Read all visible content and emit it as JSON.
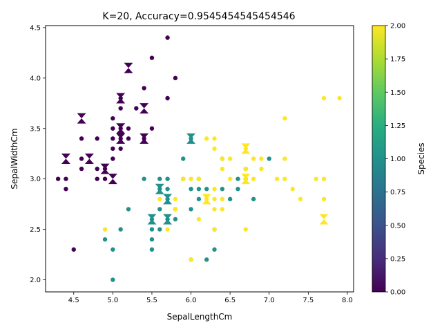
{
  "chart_data": {
    "type": "scatter",
    "title": "K=20, Accuracy=0.9545454545454546",
    "xlabel": "SepalLengthCm",
    "ylabel": "SepalWidthCm",
    "xlim": [
      4.14,
      8.08
    ],
    "ylim": [
      1.88,
      4.52
    ],
    "xticks": [
      "4.5",
      "5.0",
      "5.5",
      "6.0",
      "6.5",
      "7.0",
      "7.5",
      "8.0"
    ],
    "yticks": [
      "2.0",
      "2.5",
      "3.0",
      "3.5",
      "4.0",
      "4.5"
    ],
    "grid": false,
    "colorbar": {
      "label": "Species",
      "range": [
        0,
        2
      ],
      "ticks": [
        "0.00",
        "0.25",
        "0.50",
        "0.75",
        "1.00",
        "1.25",
        "1.50",
        "1.75",
        "2.00"
      ],
      "colormap": "viridis"
    },
    "series": [
      {
        "marker": "circle",
        "points": [
          [
            4.3,
            3.0,
            0
          ],
          [
            4.4,
            3.0,
            0
          ],
          [
            4.4,
            2.9,
            0
          ],
          [
            4.5,
            2.3,
            0
          ],
          [
            4.6,
            3.2,
            0
          ],
          [
            4.6,
            3.1,
            0
          ],
          [
            4.6,
            3.4,
            0
          ],
          [
            4.8,
            3.4,
            0
          ],
          [
            4.8,
            3.1,
            0
          ],
          [
            4.8,
            3.0,
            0
          ],
          [
            4.9,
            3.1,
            0
          ],
          [
            4.9,
            3.0,
            0
          ],
          [
            5.0,
            3.6,
            0
          ],
          [
            5.0,
            3.5,
            0
          ],
          [
            5.0,
            3.4,
            0
          ],
          [
            5.0,
            3.3,
            0
          ],
          [
            5.0,
            3.2,
            0
          ],
          [
            5.1,
            3.8,
            0
          ],
          [
            5.1,
            3.7,
            0
          ],
          [
            5.1,
            3.5,
            0
          ],
          [
            5.1,
            3.4,
            0
          ],
          [
            5.1,
            3.3,
            0
          ],
          [
            5.2,
            3.5,
            0
          ],
          [
            5.2,
            3.4,
            0
          ],
          [
            5.3,
            3.7,
            0
          ],
          [
            5.4,
            3.9,
            0
          ],
          [
            5.4,
            3.4,
            0
          ],
          [
            5.5,
            4.2,
            0
          ],
          [
            5.5,
            3.5,
            0
          ],
          [
            5.7,
            4.4,
            0
          ],
          [
            5.7,
            3.8,
            0
          ],
          [
            5.8,
            4.0,
            0
          ],
          [
            4.9,
            2.4,
            1
          ],
          [
            5.0,
            2.3,
            1
          ],
          [
            5.0,
            2.0,
            1
          ],
          [
            5.1,
            2.5,
            1
          ],
          [
            5.2,
            2.7,
            1
          ],
          [
            5.4,
            3.0,
            1
          ],
          [
            5.5,
            2.5,
            1
          ],
          [
            5.5,
            2.4,
            1
          ],
          [
            5.5,
            2.3,
            1
          ],
          [
            5.5,
            2.6,
            1
          ],
          [
            5.6,
            3.0,
            1
          ],
          [
            5.6,
            2.9,
            1
          ],
          [
            5.6,
            2.7,
            1
          ],
          [
            5.6,
            2.5,
            1
          ],
          [
            5.7,
            3.0,
            1
          ],
          [
            5.7,
            2.9,
            1
          ],
          [
            5.7,
            2.8,
            1
          ],
          [
            5.7,
            2.6,
            1
          ],
          [
            5.8,
            2.7,
            1
          ],
          [
            5.8,
            2.6,
            1
          ],
          [
            5.9,
            3.2,
            1
          ],
          [
            5.9,
            3.0,
            1
          ],
          [
            6.0,
            2.9,
            1
          ],
          [
            6.0,
            2.7,
            1
          ],
          [
            6.0,
            2.2,
            1
          ],
          [
            6.0,
            3.4,
            1
          ],
          [
            6.1,
            2.9,
            1
          ],
          [
            6.1,
            2.8,
            1
          ],
          [
            6.1,
            3.0,
            1
          ],
          [
            6.2,
            2.9,
            1
          ],
          [
            6.2,
            2.2,
            1
          ],
          [
            6.3,
            2.3,
            1
          ],
          [
            6.3,
            2.5,
            1
          ],
          [
            6.4,
            2.9,
            1
          ],
          [
            6.4,
            3.2,
            1
          ],
          [
            6.5,
            2.8,
            1
          ],
          [
            6.6,
            2.9,
            1
          ],
          [
            6.6,
            3.0,
            1
          ],
          [
            6.7,
            3.0,
            1
          ],
          [
            6.7,
            3.1,
            1
          ],
          [
            6.8,
            2.8,
            1
          ],
          [
            7.0,
            3.2,
            1
          ],
          [
            4.9,
            2.5,
            2
          ],
          [
            5.6,
            2.8,
            2
          ],
          [
            5.7,
            2.5,
            2
          ],
          [
            5.8,
            2.7,
            2
          ],
          [
            5.8,
            2.8,
            2
          ],
          [
            5.9,
            3.0,
            2
          ],
          [
            6.0,
            3.0,
            2
          ],
          [
            6.0,
            2.2,
            2
          ],
          [
            6.1,
            3.0,
            2
          ],
          [
            6.1,
            2.6,
            2
          ],
          [
            6.2,
            3.4,
            2
          ],
          [
            6.2,
            2.8,
            2
          ],
          [
            6.3,
            3.4,
            2
          ],
          [
            6.3,
            3.3,
            2
          ],
          [
            6.3,
            2.9,
            2
          ],
          [
            6.3,
            2.8,
            2
          ],
          [
            6.3,
            2.7,
            2
          ],
          [
            6.3,
            2.5,
            2
          ],
          [
            6.4,
            3.2,
            2
          ],
          [
            6.4,
            3.1,
            2
          ],
          [
            6.4,
            2.8,
            2
          ],
          [
            6.4,
            2.7,
            2
          ],
          [
            6.5,
            3.2,
            2
          ],
          [
            6.5,
            3.0,
            2
          ],
          [
            6.7,
            3.3,
            2
          ],
          [
            6.7,
            3.1,
            2
          ],
          [
            6.7,
            3.0,
            2
          ],
          [
            6.7,
            2.5,
            2
          ],
          [
            6.8,
            3.2,
            2
          ],
          [
            6.8,
            3.0,
            2
          ],
          [
            6.9,
            3.2,
            2
          ],
          [
            6.9,
            3.1,
            2
          ],
          [
            7.1,
            3.0,
            2
          ],
          [
            7.2,
            3.6,
            2
          ],
          [
            7.2,
            3.2,
            2
          ],
          [
            7.2,
            3.0,
            2
          ],
          [
            7.3,
            2.9,
            2
          ],
          [
            7.4,
            2.8,
            2
          ],
          [
            7.6,
            3.0,
            2
          ],
          [
            7.7,
            3.8,
            2
          ],
          [
            7.7,
            3.0,
            2
          ],
          [
            7.7,
            2.8,
            2
          ],
          [
            7.9,
            3.8,
            2
          ]
        ]
      },
      {
        "marker": "hourglass",
        "points": [
          [
            4.4,
            3.2,
            0
          ],
          [
            4.6,
            3.6,
            0
          ],
          [
            4.7,
            3.2,
            0
          ],
          [
            4.9,
            3.1,
            0
          ],
          [
            5.0,
            3.0,
            0
          ],
          [
            5.1,
            3.8,
            0
          ],
          [
            5.1,
            3.5,
            0
          ],
          [
            5.1,
            3.4,
            0
          ],
          [
            5.2,
            4.1,
            0
          ],
          [
            5.4,
            3.7,
            0
          ],
          [
            5.4,
            3.4,
            0
          ],
          [
            5.5,
            2.6,
            1
          ],
          [
            5.6,
            2.9,
            1
          ],
          [
            5.7,
            2.8,
            1
          ],
          [
            5.7,
            2.6,
            1
          ],
          [
            6.0,
            3.4,
            1
          ],
          [
            6.2,
            2.8,
            2
          ],
          [
            6.7,
            3.3,
            2
          ],
          [
            6.7,
            3.0,
            2
          ],
          [
            7.7,
            2.6,
            2
          ]
        ]
      }
    ]
  }
}
